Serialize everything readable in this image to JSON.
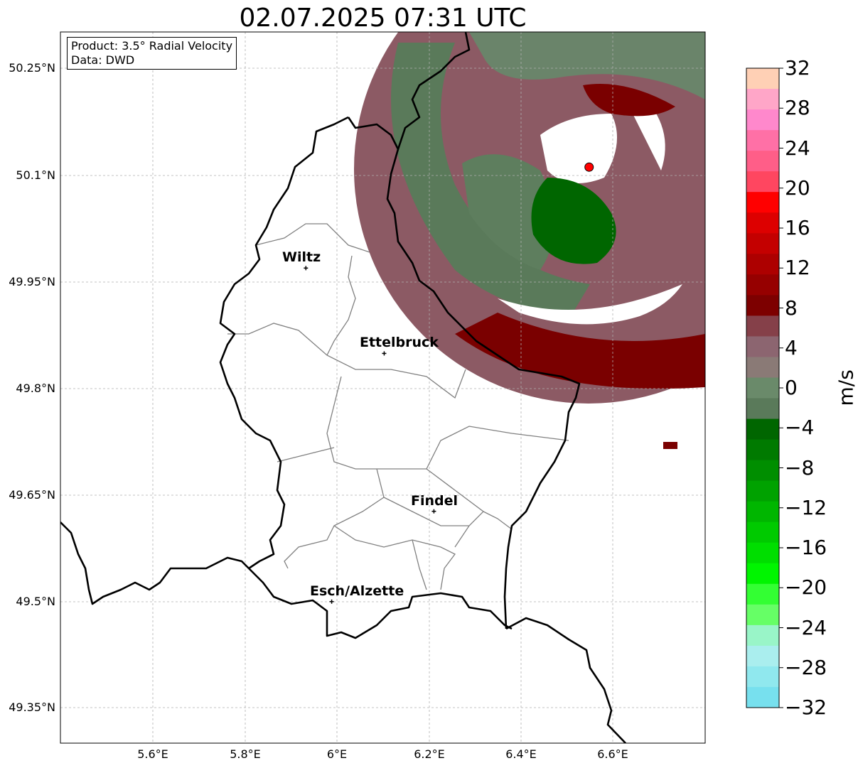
{
  "title": "02.07.2025 07:31 UTC",
  "info_box": {
    "product": "Product: 3.5° Radial Velocity",
    "data_source": "Data: DWD"
  },
  "lat_labels": [
    "50.25°N",
    "50.1°N",
    "49.95°N",
    "49.8°N",
    "49.65°N",
    "49.5°N",
    "49.35°N"
  ],
  "lon_labels": [
    "5.6°E",
    "5.8°E",
    "6°E",
    "6.2°E",
    "6.4°E",
    "6.6°E"
  ],
  "cities": [
    {
      "name": "Wiltz",
      "lat": 49.968,
      "lon": 5.933
    },
    {
      "name": "Ettelbruck",
      "lat": 49.848,
      "lon": 6.103
    },
    {
      "name": "Findel",
      "lat": 49.626,
      "lon": 6.211
    },
    {
      "name": "Esch/Alzette",
      "lat": 49.499,
      "lon": 5.989
    }
  ],
  "radar_site": {
    "lat": 50.11,
    "lon": 6.548,
    "color": "#ff0000"
  },
  "colorbar": {
    "label": "m/s",
    "min": -32,
    "max": 32,
    "tick_labels": [
      "32",
      "28",
      "24",
      "20",
      "16",
      "12",
      "8",
      "4",
      "0",
      "−4",
      "−8",
      "−12",
      "−16",
      "−20",
      "−24",
      "−28",
      "−32"
    ],
    "colors_top_to_bottom": [
      "#ffd0b5",
      "#ffa6c8",
      "#ff88cc",
      "#ff70a6",
      "#ff5e88",
      "#ff4660",
      "#ff0000",
      "#dd0000",
      "#c40000",
      "#ad0000",
      "#960000",
      "#7d0000",
      "#854049",
      "#8c6570",
      "#8a7a76",
      "#6a8a6a",
      "#5a7a5a",
      "#006600",
      "#007a00",
      "#008e00",
      "#00a200",
      "#00b600",
      "#00ca00",
      "#00de00",
      "#00f500",
      "#33ff33",
      "#66ff66",
      "#99f5c8",
      "#aaeeee",
      "#90e8ee",
      "#77e0ee"
    ]
  },
  "map_extent": {
    "lon_min": 5.4,
    "lon_max": 6.8,
    "lat_min": 49.3,
    "lat_max": 50.3
  }
}
